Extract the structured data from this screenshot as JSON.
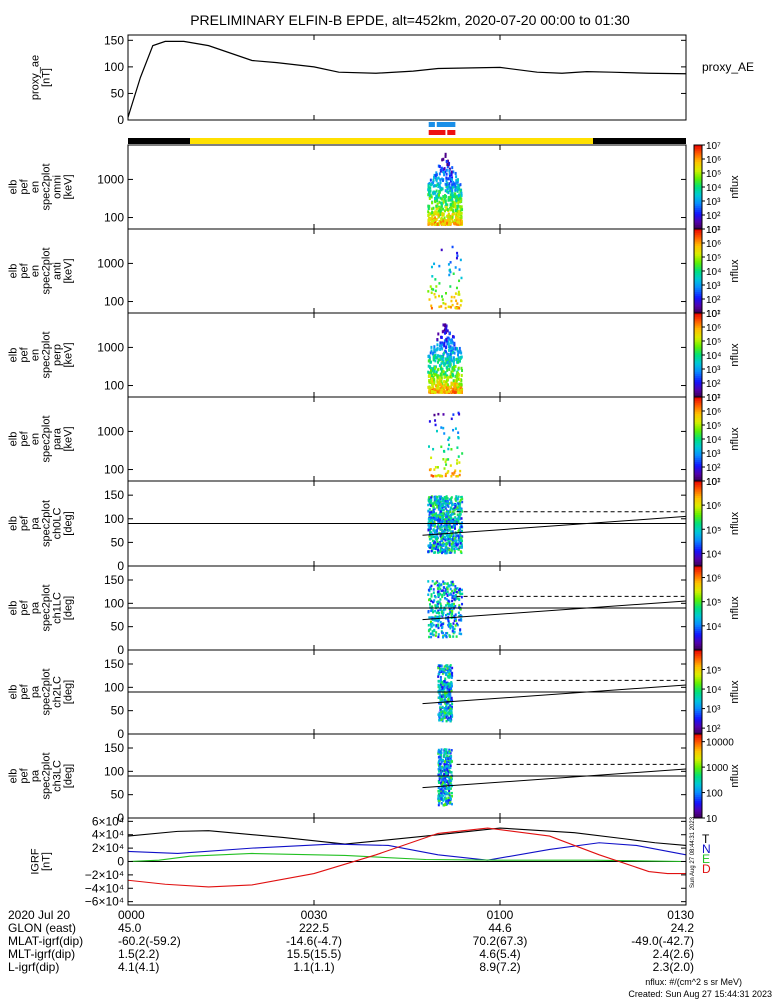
{
  "title": "PRELIMINARY ELFIN-B EPDE, alt=452km, 2020-07-20 00:00 to 01:30",
  "colors": {
    "axis": "#000000",
    "bar_black": "#000000",
    "bar_yellow": "#ffe000",
    "flag_blue": "#1a8fe8",
    "flag_red": "#ee1111",
    "T": "#000000",
    "N": "#1010c8",
    "E": "#22c022",
    "D": "#e01010"
  },
  "chart_data": [
    {
      "id": "proxy_ae",
      "type": "line",
      "ylabel_lines": [
        "proxy_ae",
        "[nT]"
      ],
      "legend": "proxy_AE",
      "ylim": [
        0,
        160
      ],
      "yticks": [
        "0",
        "50",
        "100",
        "150"
      ],
      "ytick_values": [
        0,
        50,
        100,
        150
      ],
      "x_minutes": [
        0,
        2,
        4,
        6,
        9,
        13,
        20,
        24,
        30,
        34,
        40,
        46,
        50,
        60,
        66,
        70,
        74,
        78,
        84,
        90
      ],
      "values": [
        5,
        80,
        140,
        148,
        148,
        140,
        112,
        108,
        100,
        90,
        88,
        92,
        97,
        99,
        90,
        88,
        91,
        90,
        88,
        87
      ]
    },
    {
      "id": "science_zone_bar",
      "type": "bar",
      "segments": [
        {
          "from_min": 0,
          "to_min": 10,
          "color": "black"
        },
        {
          "from_min": 10,
          "to_min": 75,
          "color": "yellow"
        },
        {
          "from_min": 75,
          "to_min": 90,
          "color": "black"
        }
      ],
      "flags_blue": [
        [
          48.5,
          49.5
        ],
        [
          49.8,
          52.8
        ]
      ],
      "flags_red": [
        [
          48.5,
          51.2
        ],
        [
          51.5,
          52.8
        ]
      ]
    },
    {
      "id": "en_omni",
      "type": "heatmap",
      "ylabel_lines": [
        "elb",
        "pef",
        "en",
        "spec2plot",
        "omni",
        "[keV]"
      ],
      "yaxis": "log",
      "ylim": [
        50,
        8000
      ],
      "yticks": [
        "100",
        "1000"
      ],
      "ytick_values": [
        100,
        1000
      ],
      "zaxis": "log",
      "zlim": [
        10,
        10000000
      ],
      "zlabel": "nflux",
      "zticks": [
        "10⁷",
        "10⁶",
        "10⁵",
        "10⁴",
        "10³",
        "10²",
        "10¹"
      ],
      "ztick_values": [
        10000000,
        1000000,
        100000,
        10000,
        1000,
        100,
        10
      ]
    },
    {
      "id": "en_anti",
      "type": "heatmap",
      "ylabel_lines": [
        "elb",
        "pef",
        "en",
        "spec2plot",
        "anti",
        "[keV]"
      ],
      "yaxis": "log",
      "ylim": [
        50,
        8000
      ],
      "yticks": [
        "100",
        "1000"
      ],
      "ytick_values": [
        100,
        1000
      ],
      "zaxis": "log",
      "zlim": [
        10,
        10000000
      ],
      "zlabel": "nflux",
      "zticks": [
        "10⁷",
        "10⁶",
        "10⁵",
        "10⁴",
        "10³",
        "10²",
        "10¹"
      ],
      "ztick_values": [
        10000000,
        1000000,
        100000,
        10000,
        1000,
        100,
        10
      ]
    },
    {
      "id": "en_perp",
      "type": "heatmap",
      "ylabel_lines": [
        "elb",
        "pef",
        "en",
        "spec2plot",
        "perp",
        "[keV]"
      ],
      "yaxis": "log",
      "ylim": [
        50,
        8000
      ],
      "yticks": [
        "100",
        "1000"
      ],
      "ytick_values": [
        100,
        1000
      ],
      "zaxis": "log",
      "zlim": [
        10,
        10000000
      ],
      "zlabel": "nflux",
      "zticks": [
        "10⁷",
        "10⁶",
        "10⁵",
        "10⁴",
        "10³",
        "10²",
        "10¹"
      ],
      "ztick_values": [
        10000000,
        1000000,
        100000,
        10000,
        1000,
        100,
        10
      ]
    },
    {
      "id": "en_para",
      "type": "heatmap",
      "ylabel_lines": [
        "elb",
        "pef",
        "en",
        "spec2plot",
        "para",
        "[keV]"
      ],
      "yaxis": "log",
      "ylim": [
        50,
        8000
      ],
      "yticks": [
        "100",
        "1000"
      ],
      "ytick_values": [
        100,
        1000
      ],
      "zaxis": "log",
      "zlim": [
        10,
        10000000
      ],
      "zlabel": "nflux",
      "zticks": [
        "10⁷",
        "10⁶",
        "10⁵",
        "10⁴",
        "10³",
        "10²",
        "10¹"
      ],
      "ztick_values": [
        10000000,
        1000000,
        100000,
        10000,
        1000,
        100,
        10
      ]
    },
    {
      "id": "pa_ch0LC",
      "type": "heatmap",
      "ylabel_lines": [
        "elb",
        "pef",
        "pa",
        "spec2plot",
        "ch0LC",
        "[deg]"
      ],
      "yaxis": "linear",
      "ylim": [
        0,
        180
      ],
      "yticks": [
        "0",
        "50",
        "100",
        "150"
      ],
      "ytick_values": [
        0,
        50,
        100,
        150
      ],
      "zaxis": "log",
      "zlim": [
        3000,
        10000000
      ],
      "zlabel": "nflux",
      "zticks": [
        "10⁷",
        "10⁶",
        "10⁵",
        "10⁴"
      ],
      "ztick_values": [
        10000000,
        1000000,
        100000,
        10000
      ]
    },
    {
      "id": "pa_ch1LC",
      "type": "heatmap",
      "ylabel_lines": [
        "elb",
        "pef",
        "pa",
        "spec2plot",
        "ch1LC",
        "[deg]"
      ],
      "yaxis": "linear",
      "ylim": [
        0,
        180
      ],
      "yticks": [
        "0",
        "50",
        "100",
        "150"
      ],
      "ytick_values": [
        0,
        50,
        100,
        150
      ],
      "zaxis": "log",
      "zlim": [
        1000,
        3000000
      ],
      "zlabel": "nflux",
      "zticks": [
        "10⁶",
        "10⁵",
        "10⁴"
      ],
      "ztick_values": [
        1000000,
        100000,
        10000
      ]
    },
    {
      "id": "pa_ch2LC",
      "type": "heatmap",
      "ylabel_lines": [
        "elb",
        "pef",
        "pa",
        "spec2plot",
        "ch2LC",
        "[deg]"
      ],
      "yaxis": "linear",
      "ylim": [
        0,
        180
      ],
      "yticks": [
        "0",
        "50",
        "100",
        "150"
      ],
      "ytick_values": [
        0,
        50,
        100,
        150
      ],
      "zaxis": "log",
      "zlim": [
        50,
        1000000
      ],
      "zlabel": "nflux",
      "zticks": [
        "10⁵",
        "10⁴",
        "10³",
        "10²"
      ],
      "ztick_values": [
        100000,
        10000,
        1000,
        100
      ]
    },
    {
      "id": "pa_ch3LC",
      "type": "heatmap",
      "ylabel_lines": [
        "elb",
        "pef",
        "pa",
        "spec2plot",
        "ch3LC",
        "[deg]"
      ],
      "yaxis": "linear",
      "ylim": [
        0,
        180
      ],
      "yticks": [
        "0",
        "50",
        "100",
        "150"
      ],
      "ytick_values": [
        0,
        50,
        100,
        150
      ],
      "zaxis": "log",
      "zlim": [
        10,
        20000
      ],
      "zlabel": "nflux",
      "zticks": [
        "10000",
        "1000",
        "100",
        "10"
      ],
      "ztick_values": [
        10000,
        1000,
        100,
        10
      ]
    },
    {
      "id": "igrf",
      "type": "line",
      "ylabel_lines": [
        "IGRF",
        "[nT]"
      ],
      "ylim": [
        -65000,
        65000
      ],
      "yticks": [
        "6×10⁴",
        "4×10⁴",
        "2×10⁴",
        "0",
        "−2×10⁴",
        "−4×10⁴",
        "−6×10⁴"
      ],
      "ytick_values": [
        60000,
        40000,
        20000,
        0,
        -20000,
        -40000,
        -60000
      ],
      "series": [
        {
          "name": "T",
          "x_minutes": [
            0,
            8,
            13,
            25,
            35,
            48,
            60,
            72,
            80,
            85,
            90
          ],
          "values": [
            38000,
            45000,
            46000,
            36000,
            26000,
            38000,
            50000,
            43000,
            34000,
            28000,
            24000
          ]
        },
        {
          "name": "N",
          "x_minutes": [
            0,
            8,
            20,
            33,
            42,
            50,
            58,
            68,
            76,
            82,
            90
          ],
          "values": [
            15000,
            12000,
            20000,
            26000,
            24000,
            10000,
            2000,
            18000,
            28000,
            24000,
            10000
          ]
        },
        {
          "name": "E",
          "x_minutes": [
            0,
            5,
            10,
            20,
            35,
            48,
            60,
            75,
            90
          ],
          "values": [
            0,
            2000,
            8000,
            12000,
            9000,
            3000,
            2000,
            2000,
            0
          ]
        },
        {
          "name": "D",
          "x_minutes": [
            0,
            6,
            13,
            20,
            30,
            40,
            50,
            58,
            68,
            76,
            84,
            87,
            90
          ],
          "values": [
            -28000,
            -34000,
            -38000,
            -35000,
            -18000,
            10000,
            42000,
            50000,
            38000,
            10000,
            -15000,
            -18000,
            -18000
          ]
        }
      ]
    }
  ],
  "xaxis": {
    "ticks_minutes": [
      0,
      30,
      60,
      90
    ],
    "row_labels": [
      "2020 Jul 20",
      "GLON (east)",
      "MLAT-igrf(dip)",
      "MLT-igrf(dip)",
      "L-igrf(dip)"
    ],
    "columns": [
      [
        "0000",
        "45.0",
        "-60.2(-59.2)",
        "1.5(2.2)",
        "4.1(4.1)"
      ],
      [
        "0030",
        "222.5",
        "-14.6(-4.7)",
        "15.5(15.5)",
        "1.1(1.1)"
      ],
      [
        "0100",
        "44.6",
        "70.2(67.3)",
        "4.6(5.4)",
        "8.9(7.2)"
      ],
      [
        "0130",
        "24.2",
        "-49.0(-42.7)",
        "2.4(2.6)",
        "2.3(2.0)"
      ]
    ]
  },
  "footer": {
    "units": "nflux: #/(cm^2 s sr MeV)",
    "created": "Created: Sun Aug 27 15:44:31 2023",
    "vertical_stamp": "Sun Aug 27 08:44:31 2023"
  }
}
